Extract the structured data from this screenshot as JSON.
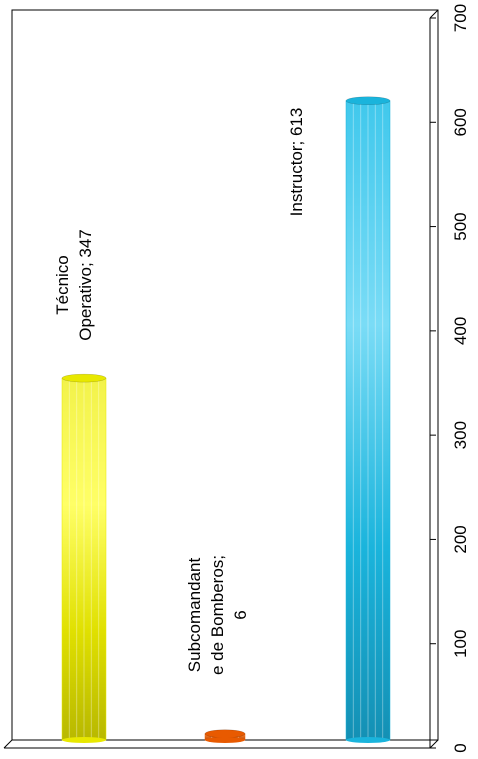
{
  "chart_data": {
    "type": "bar",
    "orientation": "rotated-vertical",
    "categories": [
      "Técnico Operativo",
      "Subcomandante de Bomberos",
      "Instructor"
    ],
    "values": [
      347,
      6,
      613
    ],
    "colors": [
      "#e8e800",
      "#e85a00",
      "#1ab4dc"
    ],
    "data_labels": [
      [
        "Técnico",
        "Operativo; 347"
      ],
      [
        "Subcomandant",
        "e de Bomberos;",
        "6"
      ],
      [
        "Instructor; 613"
      ]
    ],
    "ylim": [
      0,
      700
    ],
    "ticks": [
      "0",
      "100",
      "200",
      "300",
      "400",
      "500",
      "600",
      "700"
    ],
    "title": "",
    "xlabel": "",
    "ylabel": "",
    "grid": false,
    "legend": "none"
  }
}
